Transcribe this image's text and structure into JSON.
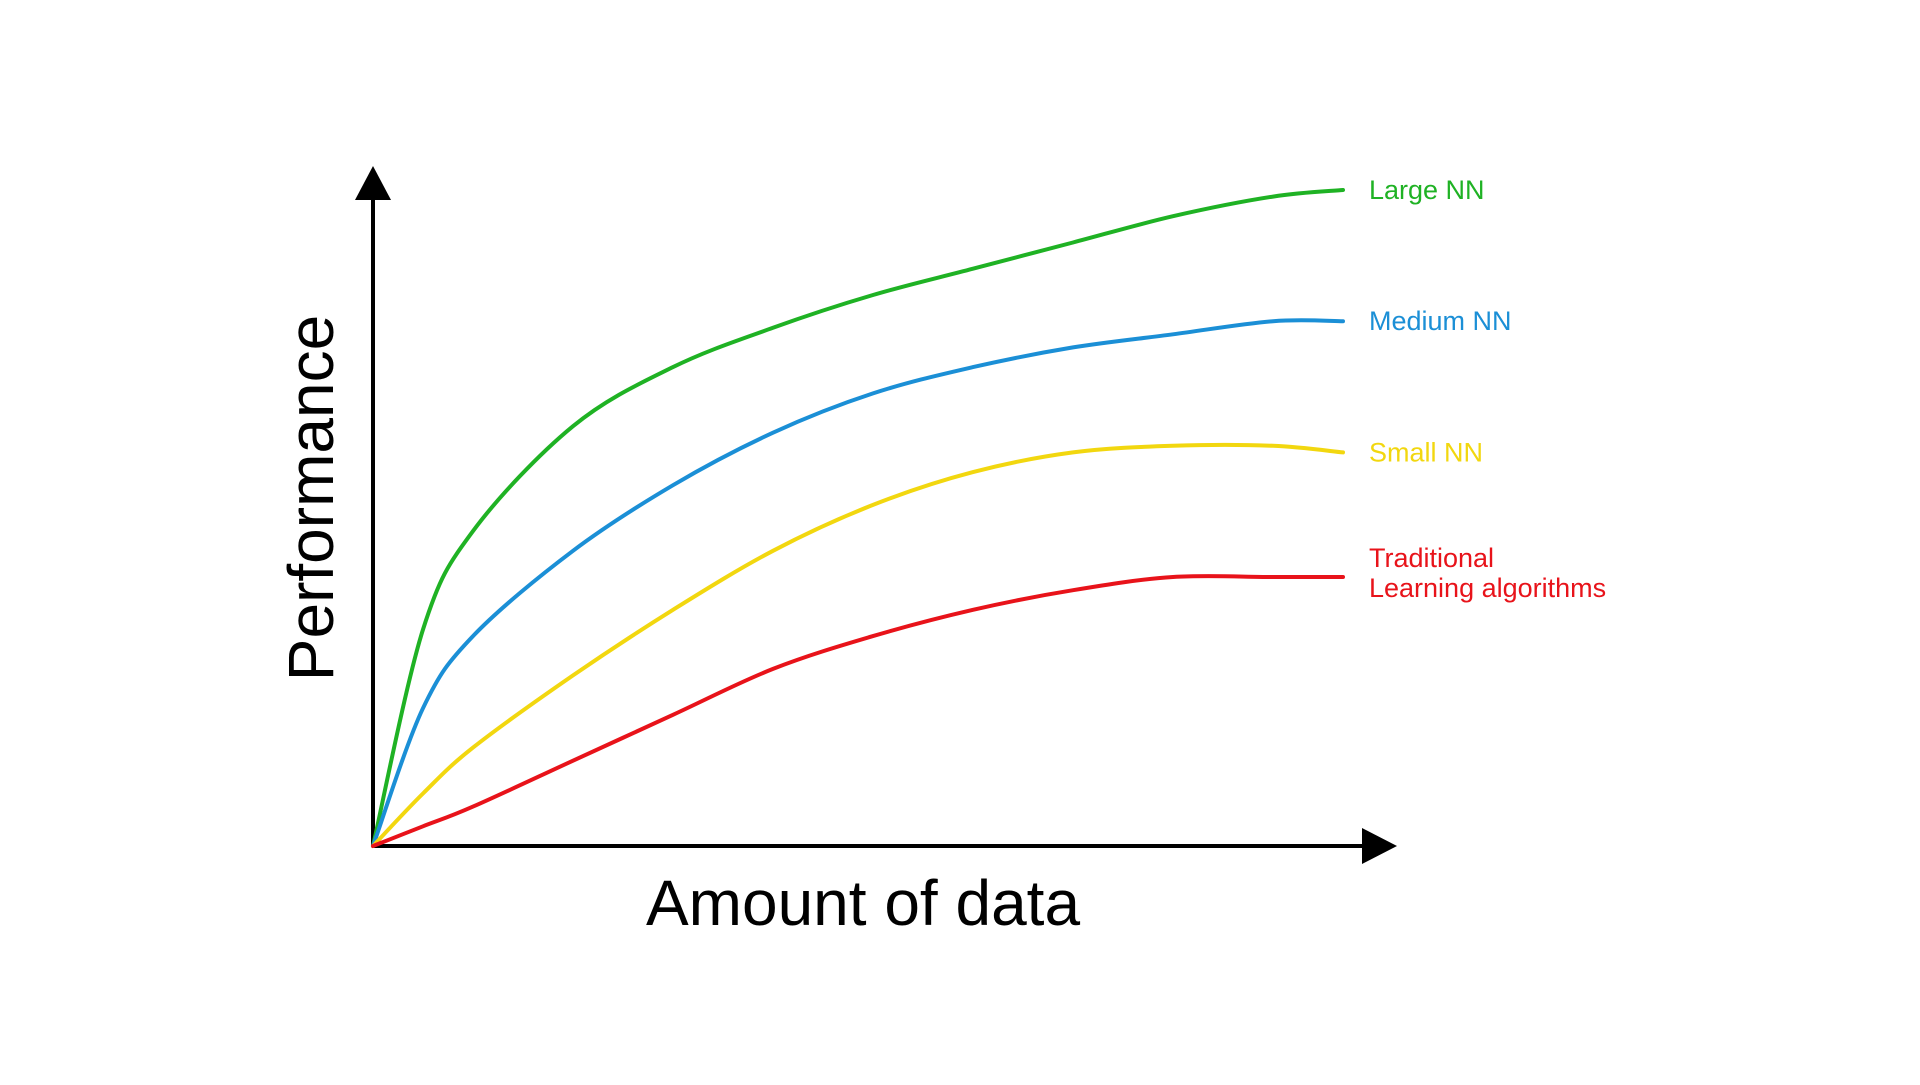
{
  "chart_data": {
    "type": "line",
    "title": "",
    "xlabel": "Amount of data",
    "ylabel": "Performance",
    "x_ticks": "none",
    "y_ticks": "none",
    "grid": false,
    "legend": "series labels at right end of each curve",
    "xlim": [
      0,
      1
    ],
    "ylim": [
      0,
      1
    ],
    "x": [
      0,
      0.05,
      0.1,
      0.2,
      0.3,
      0.4,
      0.5,
      0.6,
      0.7,
      0.8,
      0.9,
      0.97
    ],
    "series": [
      {
        "name": "Large NN",
        "label_lines": [
          "Large NN"
        ],
        "color": "#1fb224",
        "values": [
          0,
          0.33,
          0.48,
          0.64,
          0.73,
          0.79,
          0.84,
          0.88,
          0.92,
          0.96,
          0.99,
          1.0
        ]
      },
      {
        "name": "Medium NN",
        "label_lines": [
          "Medium NN"
        ],
        "color": "#1b8fd6",
        "values": [
          0,
          0.21,
          0.32,
          0.45,
          0.55,
          0.63,
          0.69,
          0.73,
          0.76,
          0.78,
          0.8,
          0.8
        ]
      },
      {
        "name": "Small NN",
        "label_lines": [
          "Small NN"
        ],
        "color": "#f2d70f",
        "values": [
          0,
          0.08,
          0.15,
          0.26,
          0.36,
          0.45,
          0.52,
          0.57,
          0.6,
          0.61,
          0.61,
          0.6
        ]
      },
      {
        "name": "Traditional Learning algorithms",
        "label_lines": [
          "Traditional",
          "Learning algorithms"
        ],
        "color": "#e8131a",
        "values": [
          0,
          0.03,
          0.06,
          0.13,
          0.2,
          0.27,
          0.32,
          0.36,
          0.39,
          0.41,
          0.41,
          0.41
        ]
      }
    ]
  }
}
